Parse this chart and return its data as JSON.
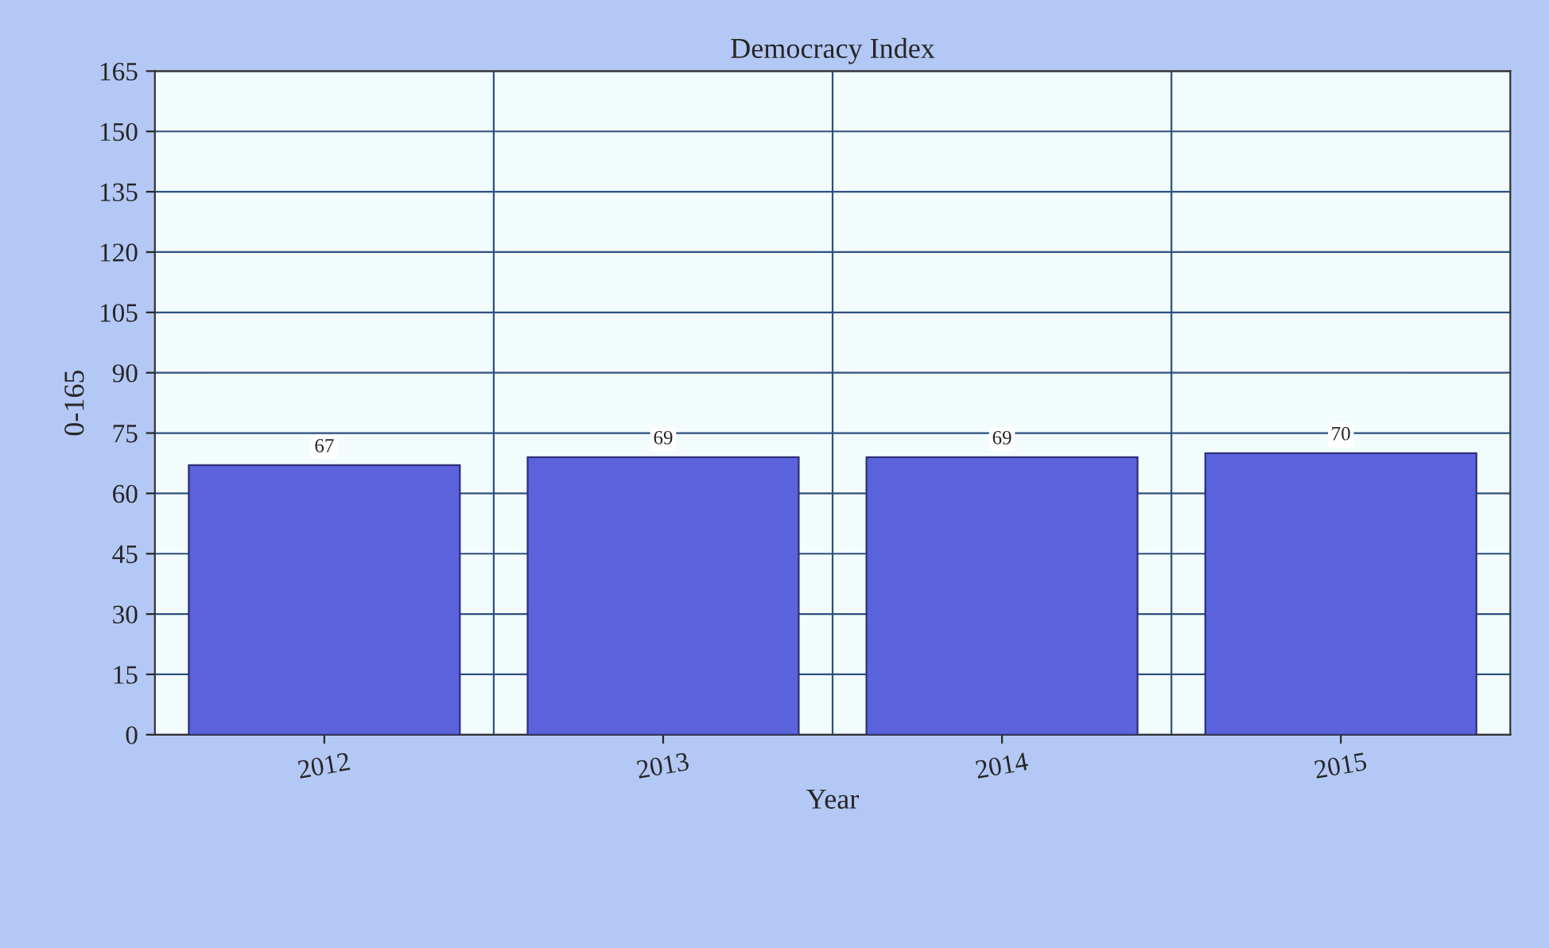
{
  "chart_data": {
    "type": "bar",
    "title": "Democracy Index",
    "xlabel": "Year",
    "ylabel": "0-165",
    "categories": [
      "2012",
      "2013",
      "2014",
      "2015"
    ],
    "values": [
      67,
      69,
      69,
      70
    ],
    "color": "#5b63dc",
    "data_labels": true,
    "ylim": [
      0,
      165
    ],
    "yticks": [
      0,
      15,
      30,
      45,
      60,
      75,
      90,
      105,
      120,
      135,
      150,
      165
    ],
    "grid": true
  }
}
